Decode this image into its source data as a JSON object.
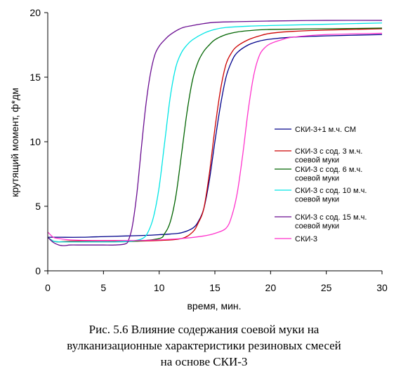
{
  "chart_data": {
    "type": "line",
    "title": "",
    "xlabel": "время, мин.",
    "ylabel": "крутящий момент, ф*дм",
    "xlim": [
      0,
      30
    ],
    "ylim": [
      0,
      20
    ],
    "xticks": [
      0,
      5,
      10,
      15,
      20,
      25,
      30
    ],
    "yticks": [
      0,
      5,
      10,
      15,
      20
    ],
    "grid": false,
    "legend_position": "right",
    "series": [
      {
        "name": "СКИ-3+1 м.ч. СМ",
        "color": "#00008b",
        "legend_lines": [
          "СКИ-3+1 м.ч. СМ"
        ],
        "x": [
          0,
          1,
          3,
          5,
          7,
          9,
          10,
          11,
          12,
          13,
          13.5,
          14,
          14.5,
          15,
          15.5,
          16,
          16.5,
          17,
          18,
          19,
          20,
          22,
          25,
          30
        ],
        "y": [
          2.6,
          2.6,
          2.6,
          2.65,
          2.7,
          2.75,
          2.8,
          2.85,
          2.95,
          3.3,
          3.8,
          4.8,
          7.0,
          10.0,
          12.8,
          15.0,
          16.2,
          16.9,
          17.5,
          17.8,
          17.95,
          18.1,
          18.2,
          18.3
        ]
      },
      {
        "name": "СКИ-3 с сод. 3 м.ч. соевой муки",
        "color": "#cc0000",
        "legend_lines": [
          "СКИ-3 с сод. 3 м.ч.",
          "соевой муки"
        ],
        "x": [
          0,
          0.5,
          1,
          2,
          4,
          6,
          8,
          10,
          12,
          13,
          13.5,
          14,
          14.5,
          15,
          15.5,
          16,
          16.5,
          17,
          18,
          19,
          20,
          22,
          25,
          30
        ],
        "y": [
          2.6,
          2.3,
          2.25,
          2.3,
          2.3,
          2.3,
          2.3,
          2.35,
          2.5,
          3.0,
          3.7,
          4.8,
          7.5,
          11.0,
          14.0,
          16.0,
          16.9,
          17.4,
          17.9,
          18.2,
          18.4,
          18.55,
          18.65,
          18.75
        ]
      },
      {
        "name": "СКИ-3 с сод. 6 м.ч. соевой муки",
        "color": "#006400",
        "legend_lines": [
          "СКИ-3 с сод. 6 м.ч.",
          "соевой муки"
        ],
        "x": [
          0,
          0.5,
          1,
          2,
          4,
          6,
          8,
          10,
          10.5,
          11,
          11.5,
          12,
          12.5,
          13,
          13.5,
          14,
          14.5,
          15,
          16,
          17,
          18,
          20,
          25,
          30
        ],
        "y": [
          2.6,
          2.3,
          2.25,
          2.25,
          2.25,
          2.25,
          2.3,
          2.5,
          2.9,
          3.8,
          5.8,
          9.0,
          12.3,
          14.8,
          16.2,
          17.0,
          17.5,
          17.9,
          18.3,
          18.5,
          18.6,
          18.7,
          18.75,
          18.8
        ]
      },
      {
        "name": "СКИ-3 с сод. 10 м.ч. соевой муки",
        "color": "#00e5e5",
        "legend_lines": [
          "СКИ-3 с сод. 10 м.ч.",
          "соевой муки"
        ],
        "x": [
          0,
          0.5,
          1,
          2,
          4,
          6,
          7.5,
          8.5,
          9,
          9.5,
          10,
          10.5,
          11,
          11.5,
          12,
          12.5,
          13,
          14,
          15,
          16,
          18,
          20,
          25,
          30
        ],
        "y": [
          2.6,
          2.3,
          2.25,
          2.25,
          2.25,
          2.25,
          2.3,
          2.5,
          3.0,
          4.2,
          6.5,
          10.0,
          13.5,
          15.8,
          16.9,
          17.5,
          17.9,
          18.4,
          18.7,
          18.85,
          18.95,
          19.0,
          19.1,
          19.2
        ]
      },
      {
        "name": "СКИ-3 с сод. 15 м.ч. соевой муки",
        "color": "#6a0d91",
        "legend_lines": [
          "СКИ-3 с сод. 15 м.ч.",
          "соевой муки"
        ],
        "x": [
          0,
          0.5,
          1,
          1.5,
          2,
          3,
          4,
          5,
          6,
          7,
          7.3,
          7.6,
          8,
          8.4,
          8.8,
          9.2,
          9.6,
          10,
          10.5,
          11,
          12,
          13,
          14,
          15,
          17,
          20,
          25,
          30
        ],
        "y": [
          2.6,
          2.2,
          2.0,
          1.95,
          2.0,
          2.0,
          2.0,
          2.0,
          2.0,
          2.1,
          2.5,
          3.5,
          6.0,
          9.5,
          12.8,
          15.2,
          16.7,
          17.4,
          17.9,
          18.3,
          18.8,
          19.0,
          19.15,
          19.25,
          19.3,
          19.35,
          19.4,
          19.4
        ]
      },
      {
        "name": "СКИ-3",
        "color": "#ff33cc",
        "legend_lines": [
          "СКИ-3"
        ],
        "x": [
          0,
          0.5,
          1,
          2,
          4,
          6,
          8,
          10,
          12,
          14,
          15,
          16,
          16.5,
          17,
          17.5,
          18,
          18.5,
          19,
          19.5,
          20,
          21,
          22,
          25,
          30
        ],
        "y": [
          3.0,
          2.6,
          2.5,
          2.4,
          2.35,
          2.35,
          2.35,
          2.4,
          2.5,
          2.7,
          2.9,
          3.3,
          4.2,
          6.0,
          9.0,
          12.5,
          15.2,
          16.7,
          17.3,
          17.6,
          17.9,
          18.1,
          18.3,
          18.4
        ]
      }
    ]
  },
  "caption": {
    "line1": "Рис. 5.6 Влияние содержания соевой муки на",
    "line2": "вулканизационные характеристики резиновых смесей",
    "line3": "на основе СКИ-3"
  }
}
